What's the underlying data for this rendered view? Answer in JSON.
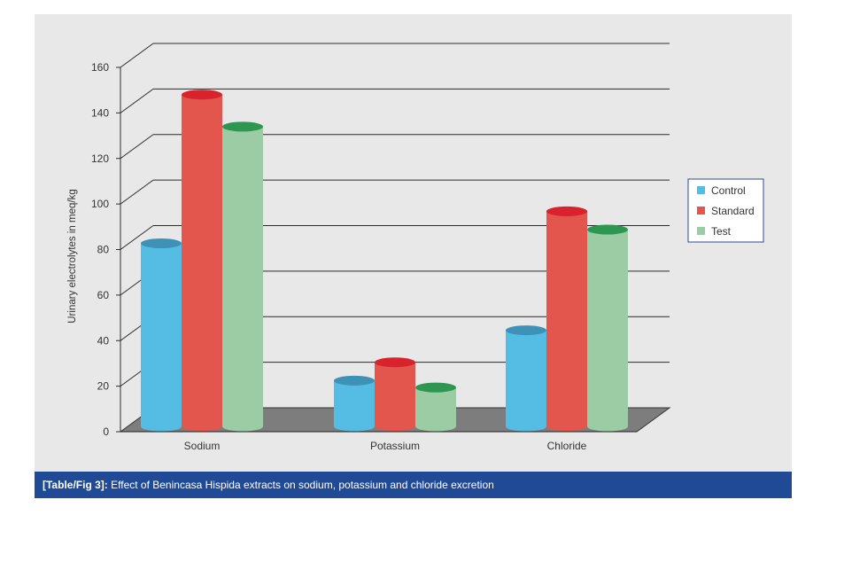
{
  "chart_data": {
    "type": "bar",
    "title": "",
    "xlabel": "",
    "ylabel": "Urinary electrolytes in meq/kg",
    "categories": [
      "Sodium",
      "Potassium",
      "Chloride"
    ],
    "series": [
      {
        "name": "Control",
        "values": [
          80,
          20,
          42
        ],
        "color": "#55bde3",
        "top_color": "#3e92b8"
      },
      {
        "name": "Standard",
        "values": [
          145,
          28,
          94
        ],
        "color": "#e2564e",
        "top_color": "#d8232d"
      },
      {
        "name": "Test",
        "values": [
          131,
          17,
          86
        ],
        "color": "#9ccca3",
        "top_color": "#2d9650"
      }
    ],
    "ylim": [
      0,
      160
    ],
    "yticks": [
      0,
      20,
      40,
      60,
      80,
      100,
      120,
      140,
      160
    ],
    "grid": true,
    "legend": "right"
  },
  "caption": {
    "label": "[Table/Fig 3]:",
    "text": " Effect of Benincasa Hispida extracts on sodium, potassium and chloride excretion"
  }
}
